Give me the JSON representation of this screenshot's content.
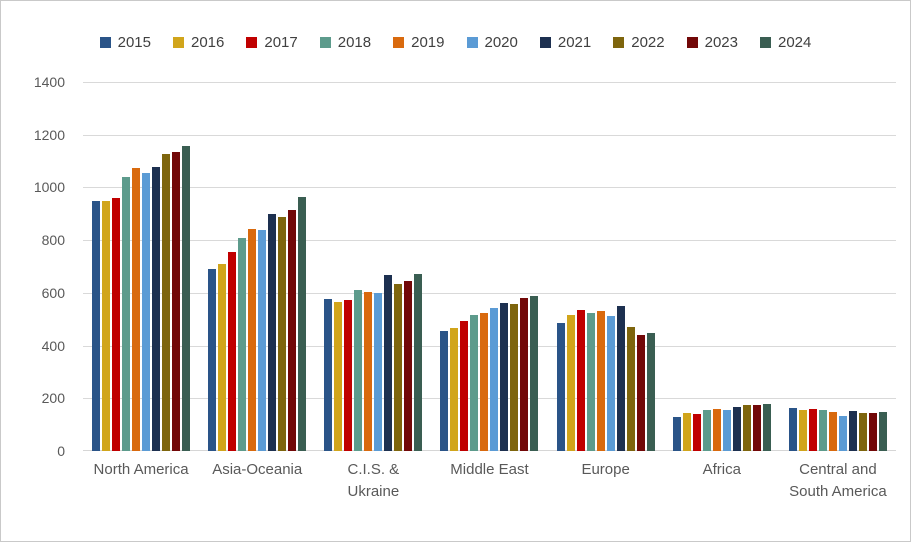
{
  "chart_data": {
    "type": "bar",
    "title": "",
    "xlabel": "",
    "ylabel": "",
    "ylim": [
      0,
      1400
    ],
    "y_ticks": [
      1400,
      1200,
      1000,
      800,
      600,
      400,
      200,
      0
    ],
    "grid": "horizontal",
    "legend_position": "top",
    "gridline_color": "#d9d9d9",
    "tick_label_color": "#595959",
    "legend_text_color": "#404040",
    "categories": [
      "North America",
      "Asia-Oceania",
      "C.I.S. &\nUkraine",
      "Middle East",
      "Europe",
      "Africa",
      "Central and\nSouth America"
    ],
    "series": [
      {
        "name": "2015",
        "color": "#2A5488",
        "values": [
          950,
          690,
          578,
          455,
          485,
          130,
          164
        ]
      },
      {
        "name": "2016",
        "color": "#D1A51B",
        "values": [
          947,
          710,
          565,
          468,
          515,
          143,
          156
        ]
      },
      {
        "name": "2017",
        "color": "#C00000",
        "values": [
          958,
          755,
          573,
          493,
          535,
          142,
          161
        ]
      },
      {
        "name": "2018",
        "color": "#5D9B8C",
        "values": [
          1040,
          807,
          610,
          515,
          522,
          154,
          154
        ]
      },
      {
        "name": "2019",
        "color": "#D96A0E",
        "values": [
          1075,
          841,
          604,
          525,
          530,
          158,
          149
        ]
      },
      {
        "name": "2020",
        "color": "#5B9BD5",
        "values": [
          1056,
          837,
          599,
          544,
          513,
          156,
          134
        ]
      },
      {
        "name": "2021",
        "color": "#1D3050",
        "values": [
          1078,
          899,
          666,
          563,
          550,
          167,
          152
        ]
      },
      {
        "name": "2022",
        "color": "#7E650D",
        "values": [
          1125,
          889,
          632,
          557,
          470,
          173,
          145
        ]
      },
      {
        "name": "2023",
        "color": "#720808",
        "values": [
          1136,
          913,
          645,
          579,
          440,
          175,
          145
        ]
      },
      {
        "name": "2024",
        "color": "#3A5E52",
        "values": [
          1157,
          965,
          670,
          588,
          446,
          180,
          148
        ]
      }
    ]
  }
}
